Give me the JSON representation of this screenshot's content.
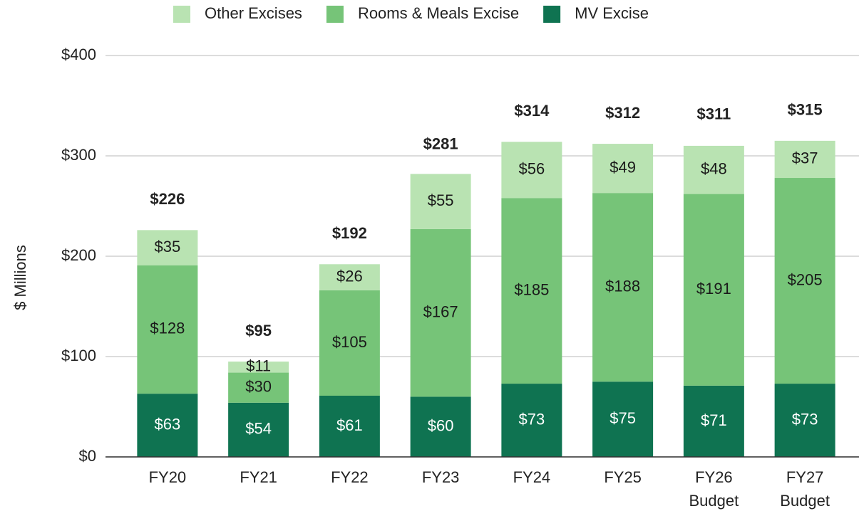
{
  "chart_data": {
    "type": "stacked_bar",
    "y_label": "$ Millions",
    "categories": [
      [
        "FY20"
      ],
      [
        "FY21"
      ],
      [
        "FY22"
      ],
      [
        "FY23"
      ],
      [
        "FY24"
      ],
      [
        "FY25"
      ],
      [
        "FY26",
        "Budget"
      ],
      [
        "FY27",
        "Budget"
      ]
    ],
    "series": [
      {
        "name": "MV Excise",
        "color": "#0f7351",
        "label_color": "#ffffff",
        "values": [
          63,
          54,
          61,
          60,
          73,
          75,
          71,
          73
        ],
        "value_labels": [
          "$63",
          "$54",
          "$61",
          "$60",
          "$73",
          "$75",
          "$71",
          "$73"
        ]
      },
      {
        "name": "Rooms & Meals Excise",
        "color": "#76c478",
        "label_color": "#1a1a1a",
        "values": [
          128,
          30,
          105,
          167,
          185,
          188,
          191,
          205
        ],
        "value_labels": [
          "$128",
          "$30",
          "$105",
          "$167",
          "$185",
          "$188",
          "$191",
          "$205"
        ]
      },
      {
        "name": "Other Excises",
        "color": "#b9e3b2",
        "label_color": "#1a1a1a",
        "values": [
          35,
          11,
          26,
          55,
          56,
          49,
          48,
          37
        ],
        "value_labels": [
          "$35",
          "$11",
          "$26",
          "$55",
          "$56",
          "$49",
          "$48",
          "$37"
        ]
      }
    ],
    "totals": [
      226,
      95,
      192,
      281,
      314,
      312,
      311,
      315
    ],
    "total_labels": [
      "$226",
      "$95",
      "$192",
      "$281",
      "$314",
      "$312",
      "$311",
      "$315"
    ],
    "legend_order": [
      2,
      1,
      0
    ],
    "ylim": [
      0,
      400
    ],
    "yticks": [
      {
        "value": 0,
        "label": "$0"
      },
      {
        "value": 100,
        "label": "$100"
      },
      {
        "value": 200,
        "label": "$200"
      },
      {
        "value": 300,
        "label": "$300"
      },
      {
        "value": 400,
        "label": "$400"
      }
    ],
    "grid": true
  }
}
